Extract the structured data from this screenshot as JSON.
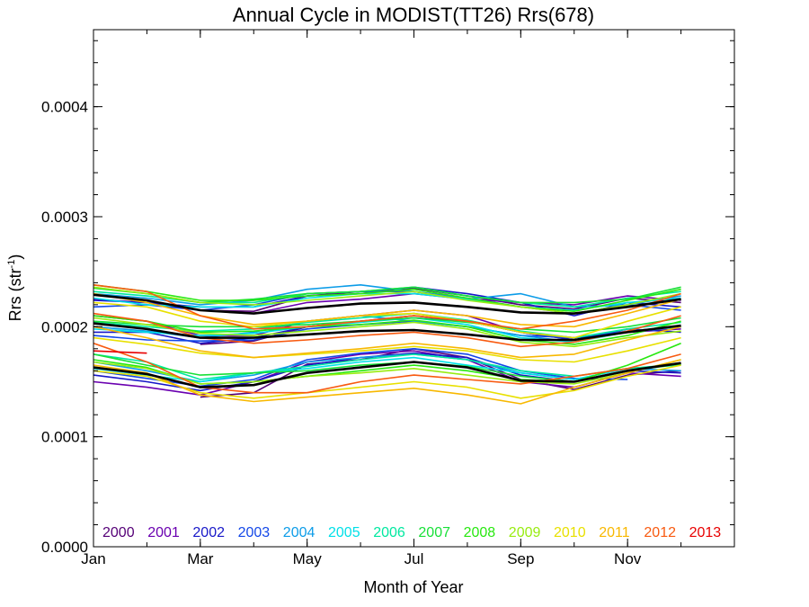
{
  "chart_data": {
    "type": "line",
    "title": "Annual Cycle in MODIST(TT26) Rrs(678)",
    "xlabel": "Month of Year",
    "ylabel_main": "Rrs (str",
    "ylabel_sup": "-1",
    "ylabel_close": ")",
    "xlim": [
      1,
      13
    ],
    "ylim": [
      0.0,
      0.00047
    ],
    "x_ticks": [
      {
        "value": 1,
        "label": "Jan"
      },
      {
        "value": 3,
        "label": "Mar"
      },
      {
        "value": 5,
        "label": "May"
      },
      {
        "value": 7,
        "label": "Jul"
      },
      {
        "value": 9,
        "label": "Sep"
      },
      {
        "value": 11,
        "label": "Nov"
      }
    ],
    "y_ticks": [
      {
        "value": 0.0,
        "label": "0.0000"
      },
      {
        "value": 0.0001,
        "label": "0.0001"
      },
      {
        "value": 0.0002,
        "label": "0.0002"
      },
      {
        "value": 0.0003,
        "label": "0.0003"
      },
      {
        "value": 0.0004,
        "label": "0.0004"
      }
    ],
    "months": [
      1,
      2,
      3,
      4,
      5,
      6,
      7,
      8,
      9,
      10,
      11,
      12
    ],
    "legend_position": "bottom, inside plot",
    "series": [
      {
        "name": "2000",
        "color": "#550077",
        "values": [
          [
            null,
            null,
            0.000184,
            0.000187,
            0.0002,
            0.000205,
            0.00021,
            0.000205,
            0.000195,
            0.000188,
            0.000195,
            0.0002
          ],
          [
            null,
            null,
            0.000136,
            0.00014,
            0.000166,
            0.00017,
            0.00018,
            0.000172,
            0.000152,
            0.000143,
            0.000156,
            0.00016
          ],
          [
            null,
            null,
            0.000215,
            0.000214,
            0.000228,
            0.000232,
            0.000235,
            0.000228,
            0.00022,
            0.000216,
            0.000226,
            0.000222
          ]
        ]
      },
      {
        "name": "2001",
        "color": "#6a00b0",
        "values": [
          [
            0.00015,
            0.000145,
            0.000138,
            0.00015,
            0.000168,
            0.000175,
            0.000178,
            0.00017,
            0.00015,
            0.000145,
            0.000158,
            0.000155
          ],
          [
            0.00021,
            0.000205,
            0.000192,
            0.000192,
            0.000205,
            0.00021,
            0.000215,
            0.00021,
            0.000195,
            0.00019,
            0.000195,
            0.000198
          ],
          [
            0.000225,
            0.000222,
            0.000215,
            0.000212,
            0.000222,
            0.000225,
            0.00023,
            0.000225,
            0.000222,
            0.00022,
            0.000228,
            0.000224
          ]
        ]
      },
      {
        "name": "2002",
        "color": "#1818c8",
        "values": [
          [
            0.000156,
            0.00015,
            0.000142,
            0.00015,
            0.000165,
            0.000172,
            0.000176,
            0.000172,
            0.000156,
            0.00015,
            0.00016,
            0.000158
          ],
          [
            0.000195,
            0.000195,
            0.000185,
            0.00019,
            0.0002,
            0.000205,
            0.000208,
            0.000205,
            0.000195,
            0.000188,
            0.000198,
            0.000195
          ],
          [
            0.000224,
            0.000222,
            0.000218,
            0.000218,
            0.000228,
            0.00023,
            0.000236,
            0.00023,
            0.000222,
            0.00021,
            0.000222,
            0.000218
          ]
        ]
      },
      {
        "name": "2003",
        "color": "#1448e8",
        "values": [
          [
            0.00016,
            0.000153,
            0.000146,
            0.000152,
            0.00017,
            0.000176,
            0.00018,
            0.000175,
            0.00016,
            0.000153,
            0.000152,
            null
          ],
          [
            0.000192,
            0.000188,
            0.000187,
            0.000188,
            0.000198,
            0.000202,
            0.000205,
            0.0002,
            0.000192,
            0.00019,
            0.000196,
            0.0002
          ],
          [
            0.000218,
            0.00022,
            0.000215,
            0.00022,
            0.00023,
            0.000232,
            0.000232,
            0.000226,
            0.000218,
            0.000212,
            0.00022,
            0.000215
          ]
        ]
      },
      {
        "name": "2004",
        "color": "#0c9ce8",
        "values": [
          [
            0.000168,
            0.00016,
            0.00015,
            0.000156,
            0.000168,
            0.000172,
            0.000175,
            0.00017,
            0.000158,
            0.000152,
            0.000162,
            0.00016
          ],
          [
            0.0002,
            0.000196,
            0.00019,
            0.000195,
            0.000205,
            0.00021,
            0.000205,
            0.0002,
            0.000192,
            0.000186,
            0.000196,
            0.0002
          ],
          [
            0.00023,
            0.000226,
            0.00022,
            0.000224,
            0.000234,
            0.000238,
            0.000232,
            0.000225,
            0.00023,
            0.000218,
            0.00022,
            0.000228
          ]
        ]
      },
      {
        "name": "2005",
        "color": "#00e0e8",
        "values": [
          [
            0.000162,
            0.000156,
            0.00015,
            0.000158,
            0.000162,
            0.000168,
            0.000172,
            0.000165,
            0.000158,
            0.000152,
            0.000162,
            0.000165
          ],
          [
            0.000198,
            0.000195,
            0.000192,
            0.000194,
            0.0002,
            0.000204,
            0.000208,
            0.000202,
            0.00019,
            0.000186,
            0.000195,
            0.0002
          ],
          [
            0.000226,
            0.00022,
            0.000218,
            0.000218,
            0.000226,
            0.00023,
            0.00023,
            0.000225,
            0.000218,
            0.000215,
            0.000222,
            0.000226
          ]
        ]
      },
      {
        "name": "2006",
        "color": "#00e8a0",
        "values": [
          [
            0.000175,
            0.000168,
            0.000152,
            0.000158,
            0.000164,
            0.00017,
            0.000175,
            0.00017,
            0.00016,
            0.000155,
            0.000162,
            0.000166
          ],
          [
            0.000204,
            0.0002,
            0.000196,
            0.000198,
            0.000204,
            0.000208,
            0.000212,
            0.000206,
            0.000196,
            0.00019,
            0.000198,
            0.000204
          ],
          [
            0.000232,
            0.000228,
            0.000222,
            0.000222,
            0.00023,
            0.000232,
            0.000236,
            0.000228,
            0.000222,
            0.000218,
            0.000226,
            0.000232
          ]
        ]
      },
      {
        "name": "2007",
        "color": "#18e038",
        "values": [
          [
            0.000175,
            0.000165,
            0.000156,
            0.000158,
            0.00016,
            0.000165,
            0.000168,
            0.000164,
            0.000155,
            0.00015,
            0.00016,
            0.000166
          ],
          [
            0.000205,
            0.000202,
            0.0002,
            0.0002,
            0.000202,
            0.000205,
            0.000208,
            0.000204,
            0.000198,
            0.000195,
            0.0002,
            0.000208
          ],
          [
            0.000235,
            0.00023,
            0.000222,
            0.000225,
            0.00023,
            0.000232,
            0.000236,
            0.000228,
            0.000222,
            0.000222,
            0.000225,
            0.000236
          ]
        ]
      },
      {
        "name": "2008",
        "color": "#28e810",
        "values": [
          [
            0.00017,
            0.000163,
            0.000148,
            0.00015,
            0.000155,
            0.00016,
            0.000165,
            0.00016,
            0.000152,
            0.00015,
            0.000165,
            0.000185
          ],
          [
            0.00021,
            0.000205,
            0.000195,
            0.000196,
            0.0002,
            0.000202,
            0.000206,
            0.0002,
            0.000188,
            0.000184,
            0.000192,
            0.000205
          ],
          [
            0.000238,
            0.000232,
            0.000224,
            0.000224,
            0.000228,
            0.00023,
            0.000234,
            0.000226,
            0.000218,
            0.000214,
            0.000224,
            0.000234
          ]
        ]
      },
      {
        "name": "2009",
        "color": "#98ec10",
        "values": [
          [
            0.000168,
            0.000162,
            0.000148,
            0.00015,
            0.000155,
            0.000158,
            0.000162,
            0.000156,
            0.00015,
            0.000148,
            0.000158,
            0.00017
          ],
          [
            0.000208,
            0.000202,
            0.000194,
            0.000192,
            0.000196,
            0.0002,
            0.000204,
            0.000198,
            0.000186,
            0.000182,
            0.00019,
            0.000196
          ],
          [
            0.000236,
            0.00023,
            0.000222,
            0.00022,
            0.000224,
            0.000228,
            0.000232,
            0.000224,
            0.000218,
            0.000212,
            0.00022,
            0.00023
          ]
        ]
      },
      {
        "name": "2010",
        "color": "#e8e000",
        "values": [
          [
            0.00016,
            0.000155,
            0.00014,
            0.000135,
            0.00014,
            0.000145,
            0.00015,
            0.000145,
            0.000135,
            0.000142,
            0.000155,
            0.000165
          ],
          [
            0.00019,
            0.000184,
            0.000176,
            0.000172,
            0.000175,
            0.000178,
            0.000182,
            0.000178,
            0.00017,
            0.000168,
            0.000178,
            0.00019
          ],
          [
            0.000222,
            0.000218,
            0.000205,
            0.0002,
            0.000205,
            0.00021,
            0.000212,
            0.000205,
            0.000195,
            0.00019,
            0.000205,
            0.000218
          ]
        ]
      },
      {
        "name": "2011",
        "color": "#f8b800",
        "values": [
          [
            0.000165,
            0.000158,
            0.000138,
            0.000132,
            0.000136,
            0.00014,
            0.000144,
            0.000138,
            0.00013,
            0.000145,
            0.000158,
            0.00017
          ],
          [
            0.0002,
            0.00019,
            0.000178,
            0.000172,
            0.000176,
            0.00018,
            0.000185,
            0.00018,
            0.000172,
            0.000175,
            0.000188,
            0.0002
          ],
          [
            0.00023,
            0.000222,
            0.00021,
            0.000202,
            0.000205,
            0.00021,
            0.000215,
            0.00021,
            0.000202,
            0.0002,
            0.000212,
            0.000225
          ]
        ]
      },
      {
        "name": "2012",
        "color": "#f85a10",
        "values": [
          [
            0.000185,
            0.000168,
            0.000145,
            0.00014,
            0.00014,
            0.00015,
            0.000156,
            0.000152,
            0.000148,
            0.000155,
            0.000162,
            0.000175
          ],
          [
            0.000212,
            0.000205,
            0.00019,
            0.000185,
            0.000188,
            0.000192,
            0.000195,
            0.00019,
            0.000182,
            0.000186,
            0.000196,
            0.00021
          ],
          [
            0.000238,
            0.000232,
            0.00021,
            0.000198,
            0.0002,
            0.000205,
            0.00021,
            0.000205,
            0.000198,
            0.000205,
            0.000215,
            0.00023
          ]
        ]
      },
      {
        "name": "2013",
        "color": "#e80000",
        "values": [
          [
            0.000178,
            0.000176,
            null,
            null,
            null,
            null,
            null,
            null,
            null,
            null,
            null,
            null
          ]
        ]
      },
      {
        "name": "",
        "color": "#000000",
        "values": [
          [
            0.000163,
            0.000157,
            0.000145,
            0.000147,
            0.000158,
            0.000163,
            0.000168,
            0.000163,
            0.000151,
            0.00015,
            0.00016,
            0.000167
          ],
          [
            0.000203,
            0.000198,
            0.00019,
            0.00019,
            0.000193,
            0.000196,
            0.000197,
            0.000193,
            0.000188,
            0.000188,
            0.000195,
            0.000201
          ],
          [
            0.000229,
            0.000224,
            0.000215,
            0.000212,
            0.000217,
            0.000221,
            0.000222,
            0.000218,
            0.000213,
            0.000212,
            0.000218,
            0.000225
          ]
        ]
      }
    ]
  }
}
